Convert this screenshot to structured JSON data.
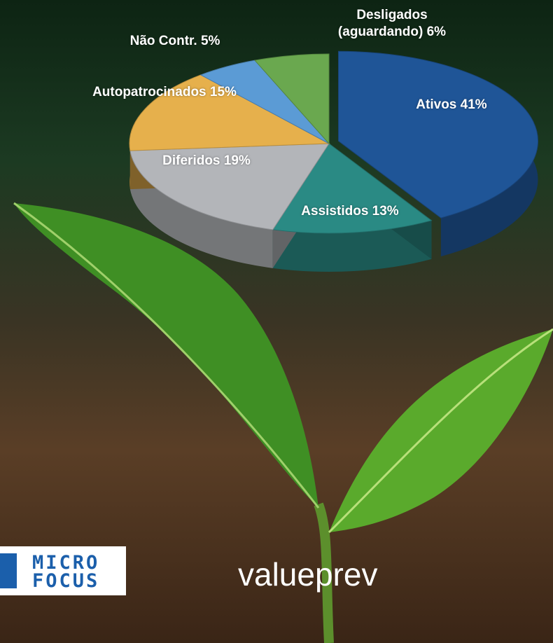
{
  "chart_data": {
    "type": "pie3d",
    "categories": [
      "Ativos",
      "Assistidos",
      "Diferidos",
      "Autopatrocinados",
      "Não Contr.",
      "Desligados (aguardando)"
    ],
    "values": [
      41,
      13,
      19,
      15,
      5,
      6
    ],
    "value_labels": [
      "41%",
      "13%",
      "19%",
      "15%",
      "5%",
      "6%"
    ],
    "colors": [
      "#1f5597",
      "#2a8a84",
      "#b3b5b9",
      "#e6b04c",
      "#5b9bd5",
      "#6aa84f"
    ]
  },
  "logos": {
    "micro_focus": [
      "MICRO",
      "FOCUS"
    ],
    "valueprev": "valueprev"
  }
}
